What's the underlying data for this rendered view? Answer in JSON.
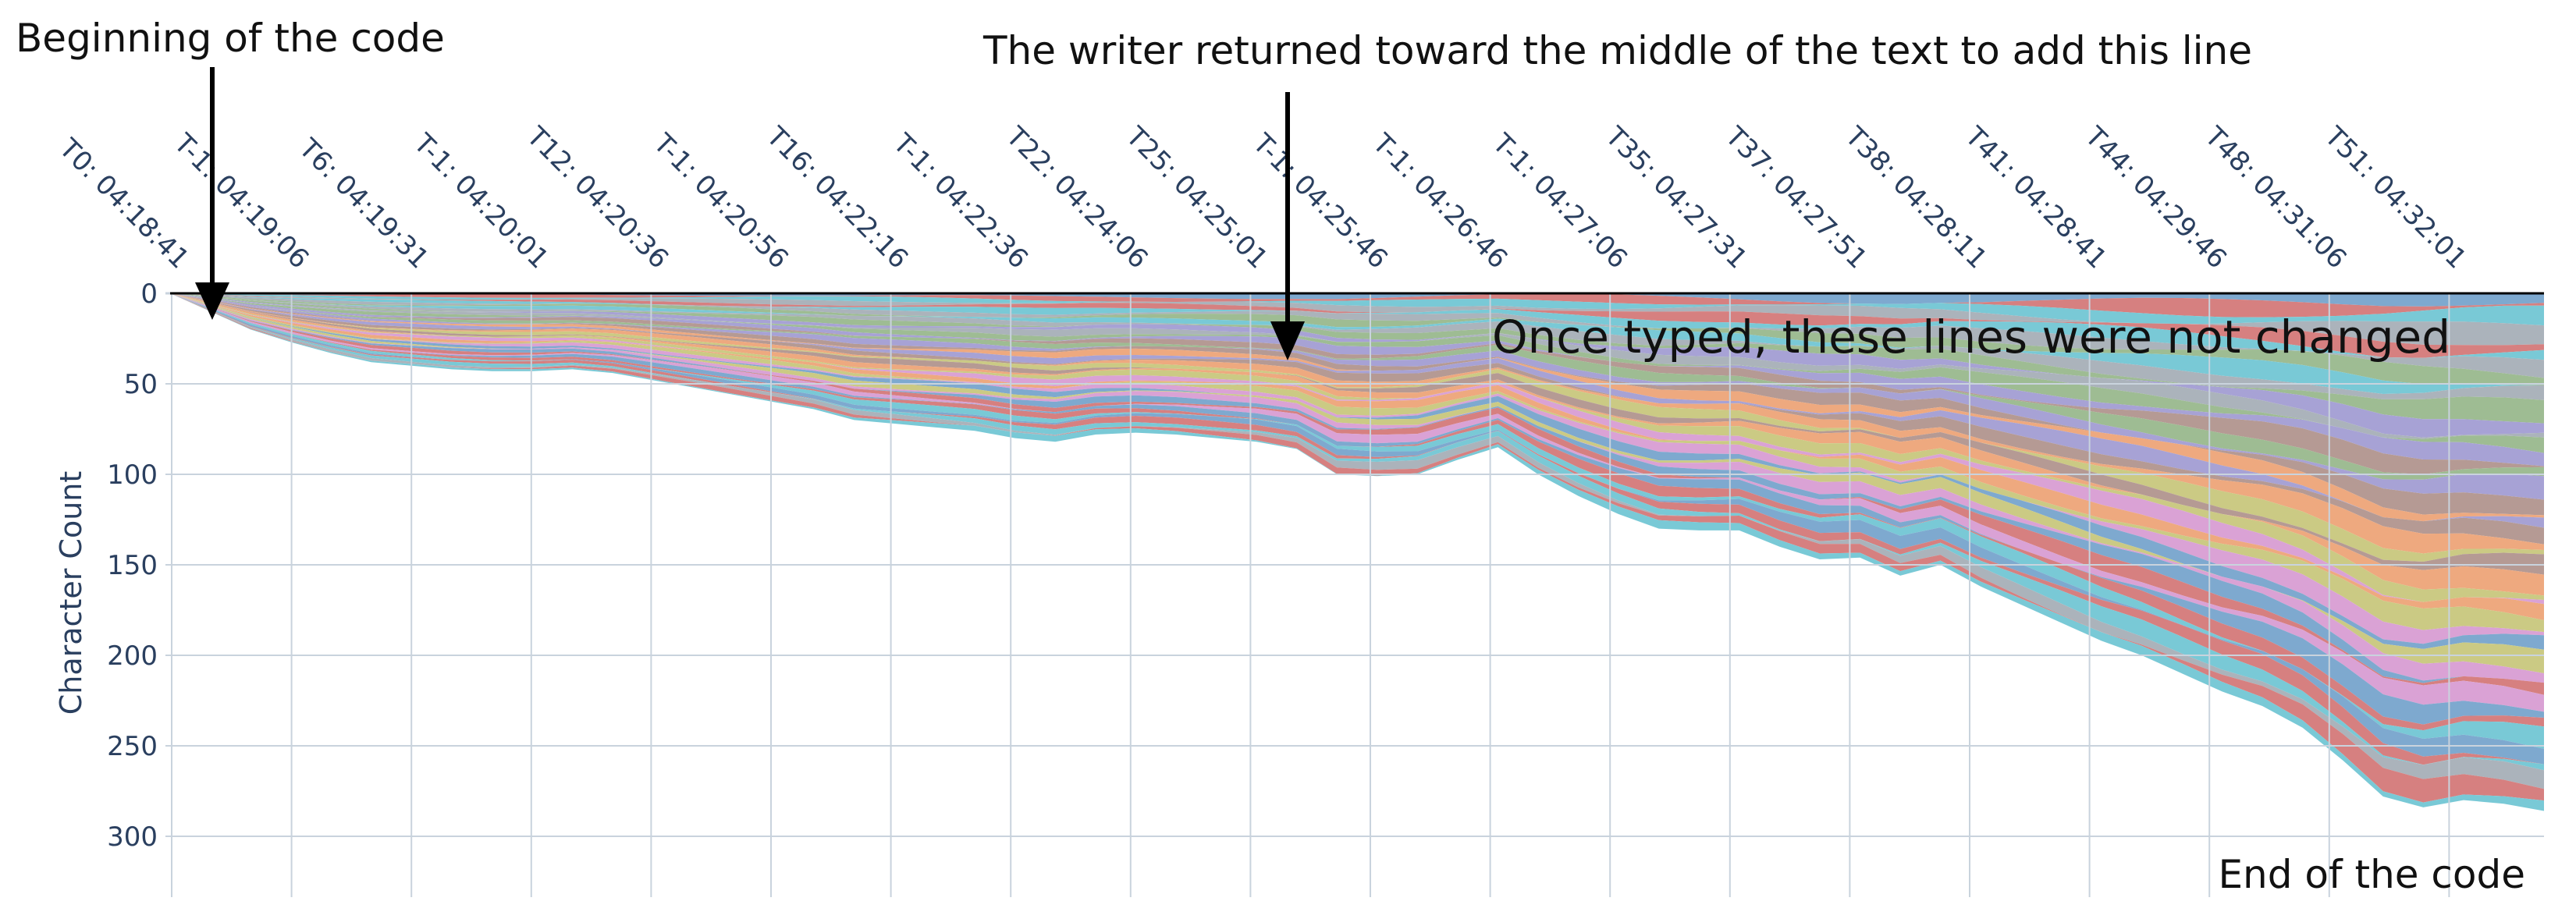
{
  "chart_data": {
    "type": "area",
    "title": "",
    "xlabel": "",
    "ylabel": "Character Count",
    "y_reversed": true,
    "ylim": [
      0,
      315
    ],
    "y_ticks": [
      0,
      50,
      100,
      150,
      200,
      250,
      300
    ],
    "x_tick_labels": [
      "T0: 04:18:41",
      "T-1: 04:19:06",
      "T6: 04:19:31",
      "T-1: 04:20:01",
      "T12: 04:20:36",
      "T-1: 04:20:56",
      "T16: 04:22:16",
      "T-1: 04:22:36",
      "T22: 04:24:06",
      "T25: 04:25:01",
      "T-1: 04:25:46",
      "T-1: 04:26:46",
      "T-1: 04:27:06",
      "T35: 04:27:31",
      "T37: 04:27:51",
      "T38: 04:28:11",
      "T41: 04:28:41",
      "T44: 04:29:46",
      "T48: 04:31:06",
      "T51: 04:32:01"
    ],
    "x_steps": 59,
    "total_characters": [
      0,
      10,
      20,
      27,
      33,
      38,
      40,
      42,
      43,
      43,
      42,
      44,
      48,
      52,
      56,
      60,
      64,
      70,
      72,
      74,
      76,
      80,
      82,
      78,
      77,
      78,
      80,
      82,
      86,
      100,
      101,
      100,
      92,
      85,
      100,
      112,
      122,
      130,
      131,
      131,
      140,
      147,
      146,
      156,
      150,
      162,
      172,
      182,
      192,
      200,
      210,
      220,
      228,
      240,
      258,
      278,
      284,
      280,
      282,
      286
    ],
    "layer_colors": [
      "#79a6cd",
      "#eda67a",
      "#9ab98f",
      "#d47b7b",
      "#c9c87f",
      "#a39ed3",
      "#74c7d4",
      "#d99ed3",
      "#b29690",
      "#a8b0b8"
    ],
    "annotations": [
      {
        "text": "Beginning of the code",
        "arrow": true
      },
      {
        "text": "The writer returned toward the middle of the text to add this line",
        "arrow": true
      },
      {
        "text": "Once typed, these lines were not changed",
        "arrow": false
      },
      {
        "text": "End of the code",
        "arrow": false
      }
    ]
  }
}
